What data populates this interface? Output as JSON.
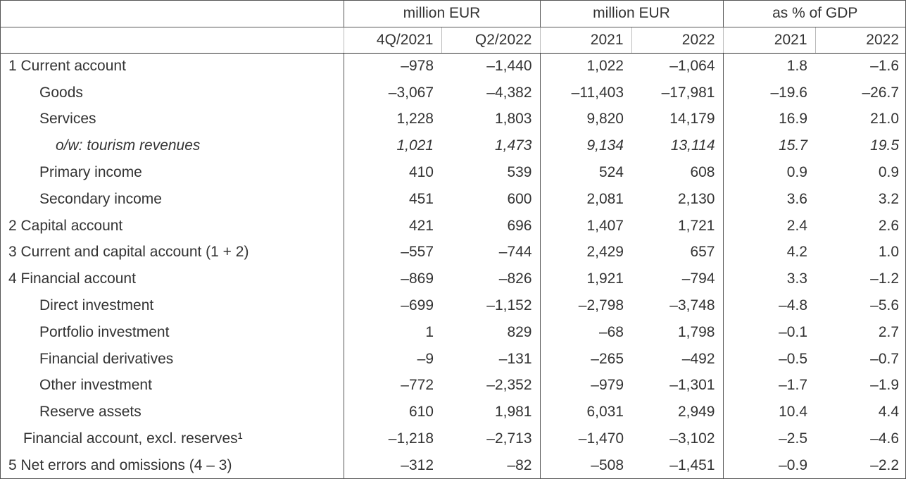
{
  "header": {
    "groups": [
      "million EUR",
      "million EUR",
      "as % of GDP"
    ],
    "periods": [
      "4Q/2021",
      "Q2/2022",
      "2021",
      "2022",
      "2021",
      "2022"
    ]
  },
  "rows": [
    {
      "label": "1 Current account",
      "values": [
        "–978",
        "–1,440",
        "1,022",
        "–1,064",
        "1.8",
        "–1.6"
      ]
    },
    {
      "label": "Goods",
      "values": [
        "–3,067",
        "–4,382",
        "–11,403",
        "–17,981",
        "–19.6",
        "–26.7"
      ]
    },
    {
      "label": "Services",
      "values": [
        "1,228",
        "1,803",
        "9,820",
        "14,179",
        "16.9",
        "21.0"
      ]
    },
    {
      "label": "o/w: tourism revenues",
      "values": [
        "1,021",
        "1,473",
        "9,134",
        "13,114",
        "15.7",
        "19.5"
      ]
    },
    {
      "label": "Primary income",
      "values": [
        "410",
        "539",
        "524",
        "608",
        "0.9",
        "0.9"
      ]
    },
    {
      "label": "Secondary income",
      "values": [
        "451",
        "600",
        "2,081",
        "2,130",
        "3.6",
        "3.2"
      ]
    },
    {
      "label": "2 Capital account",
      "values": [
        "421",
        "696",
        "1,407",
        "1,721",
        "2.4",
        "2.6"
      ]
    },
    {
      "label": "3 Current and capital account (1 + 2)",
      "values": [
        "–557",
        "–744",
        "2,429",
        "657",
        "4.2",
        "1.0"
      ]
    },
    {
      "label": "4 Financial account",
      "values": [
        "–869",
        "–826",
        "1,921",
        "–794",
        "3.3",
        "–1.2"
      ]
    },
    {
      "label": "Direct investment",
      "values": [
        "–699",
        "–1,152",
        "–2,798",
        "–3,748",
        "–4.8",
        "–5.6"
      ]
    },
    {
      "label": "Portfolio investment",
      "values": [
        "1",
        "829",
        "–68",
        "1,798",
        "–0.1",
        "2.7"
      ]
    },
    {
      "label": "Financial derivatives",
      "values": [
        "–9",
        "–131",
        "–265",
        "–492",
        "–0.5",
        "–0.7"
      ]
    },
    {
      "label": "Other investment",
      "values": [
        "–772",
        "–2,352",
        "–979",
        "–1,301",
        "–1.7",
        "–1.9"
      ]
    },
    {
      "label": "Reserve assets",
      "values": [
        "610",
        "1,981",
        "6,031",
        "2,949",
        "10.4",
        "4.4"
      ]
    },
    {
      "label": "Financial account, excl. reserves¹",
      "values": [
        "–1,218",
        "–2,713",
        "–1,470",
        "–3,102",
        "–2.5",
        "–4.6"
      ]
    },
    {
      "label": "5 Net errors and omissions (4 – 3)",
      "values": [
        "–312",
        "–82",
        "–508",
        "–1,451",
        "–0.9",
        "–2.2"
      ]
    }
  ]
}
